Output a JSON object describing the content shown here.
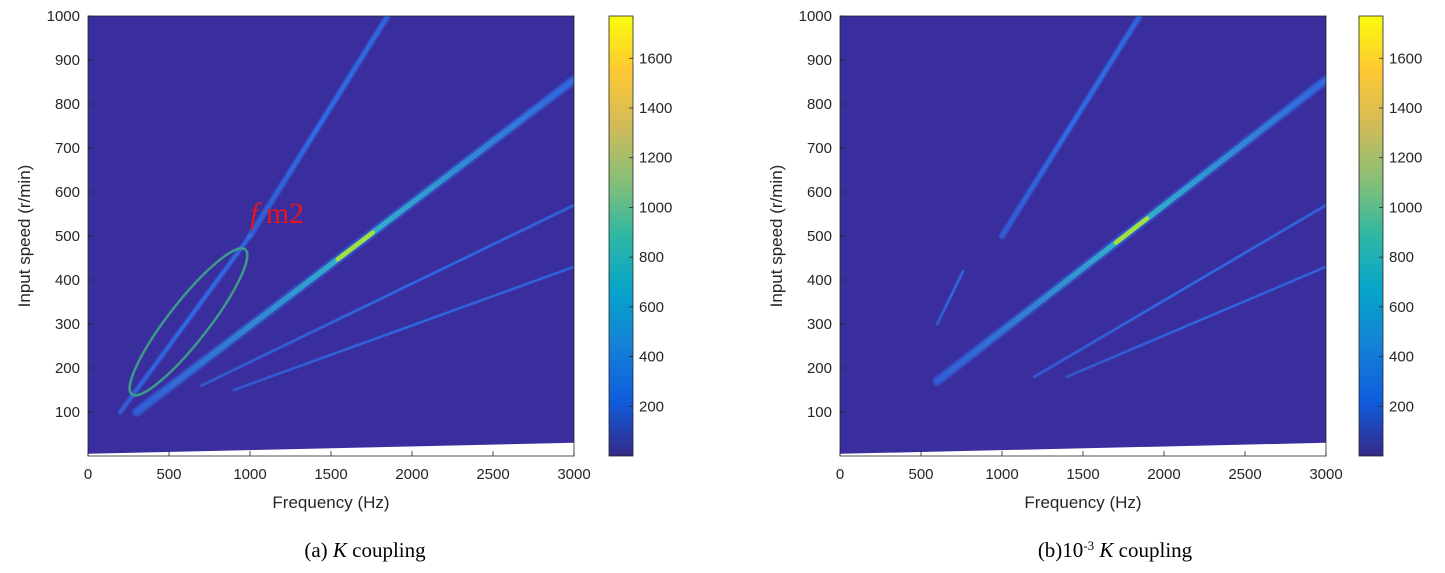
{
  "colors": {
    "background": "#3a2e9e",
    "ridge_mid": "#2f6fe8",
    "ridge_high": "#31c2c8",
    "ridge_peak": "#a8de3c",
    "ellipse": "#3c9a8a",
    "annotation": "#e8141e",
    "colormap": [
      "#352a87",
      "#0f5cdd",
      "#1481d6",
      "#06a4ca",
      "#2eb7a4",
      "#87bf77",
      "#d1bb59",
      "#fec832",
      "#f9fb0e"
    ]
  },
  "chart_data": [
    {
      "type": "heatmap",
      "id": "a",
      "caption": {
        "prefix": "(a) ",
        "italic": "K",
        "suffix": " coupling"
      },
      "xlabel": "Frequency  (Hz)",
      "ylabel": "Input speed (r/min)",
      "xlim": [
        0,
        3000
      ],
      "ylim": [
        0,
        1000
      ],
      "xticks": [
        "0",
        "500",
        "1000",
        "1500",
        "2000",
        "2500",
        "3000"
      ],
      "yticks": [
        "100",
        "200",
        "300",
        "400",
        "500",
        "600",
        "700",
        "800",
        "900",
        "1000"
      ],
      "colorbar": {
        "range": [
          0,
          1770
        ],
        "ticks": [
          "200",
          "400",
          "600",
          "800",
          "1000",
          "1200",
          "1400",
          "1600"
        ]
      },
      "ridges": [
        {
          "x": [
            200,
            1000
          ],
          "y": [
            100,
            500
          ],
          "peak": 0.35
        },
        {
          "x": [
            1000,
            1850
          ],
          "y": [
            500,
            1000
          ],
          "peak": 0.45
        },
        {
          "x": [
            300,
            3000
          ],
          "y": [
            100,
            855
          ],
          "peak": 0.7
        },
        {
          "x": [
            700,
            3000
          ],
          "y": [
            160,
            570
          ],
          "peak": 0.15
        },
        {
          "x": [
            900,
            3000
          ],
          "y": [
            150,
            430
          ],
          "peak": 0.12
        }
      ],
      "lower_cutoff": {
        "x": [
          0,
          3000
        ],
        "y": [
          5,
          30
        ]
      },
      "ellipse": {
        "center": [
          620,
          305
        ],
        "rx_hz": 180,
        "ry_rpm": 190
      },
      "annotation": {
        "italic": "f",
        "text": " m2",
        "x": 1000,
        "y": 530
      }
    },
    {
      "type": "heatmap",
      "id": "b",
      "caption": {
        "prefix": "(b)10",
        "sup": "-3",
        "italic": " K",
        "suffix": " coupling"
      },
      "xlabel": "Frequency  (Hz)",
      "ylabel": "Input speed (r/min)",
      "xlim": [
        0,
        3000
      ],
      "ylim": [
        0,
        1000
      ],
      "xticks": [
        "0",
        "500",
        "1000",
        "1500",
        "2000",
        "2500",
        "3000"
      ],
      "yticks": [
        "100",
        "200",
        "300",
        "400",
        "500",
        "600",
        "700",
        "800",
        "900",
        "1000"
      ],
      "colorbar": {
        "range": [
          0,
          1770
        ],
        "ticks": [
          "200",
          "400",
          "600",
          "800",
          "1000",
          "1200",
          "1400",
          "1600"
        ]
      },
      "ridges": [
        {
          "x": [
            600,
            760
          ],
          "y": [
            300,
            420
          ],
          "peak": 0.15
        },
        {
          "x": [
            1000,
            1850
          ],
          "y": [
            500,
            1000
          ],
          "peak": 0.45
        },
        {
          "x": [
            600,
            3000
          ],
          "y": [
            170,
            855
          ],
          "peak": 0.7
        },
        {
          "x": [
            1200,
            3000
          ],
          "y": [
            180,
            570
          ],
          "peak": 0.15
        },
        {
          "x": [
            1400,
            3000
          ],
          "y": [
            180,
            430
          ],
          "peak": 0.12
        }
      ],
      "lower_cutoff": {
        "x": [
          0,
          3000
        ],
        "y": [
          5,
          30
        ]
      }
    }
  ]
}
